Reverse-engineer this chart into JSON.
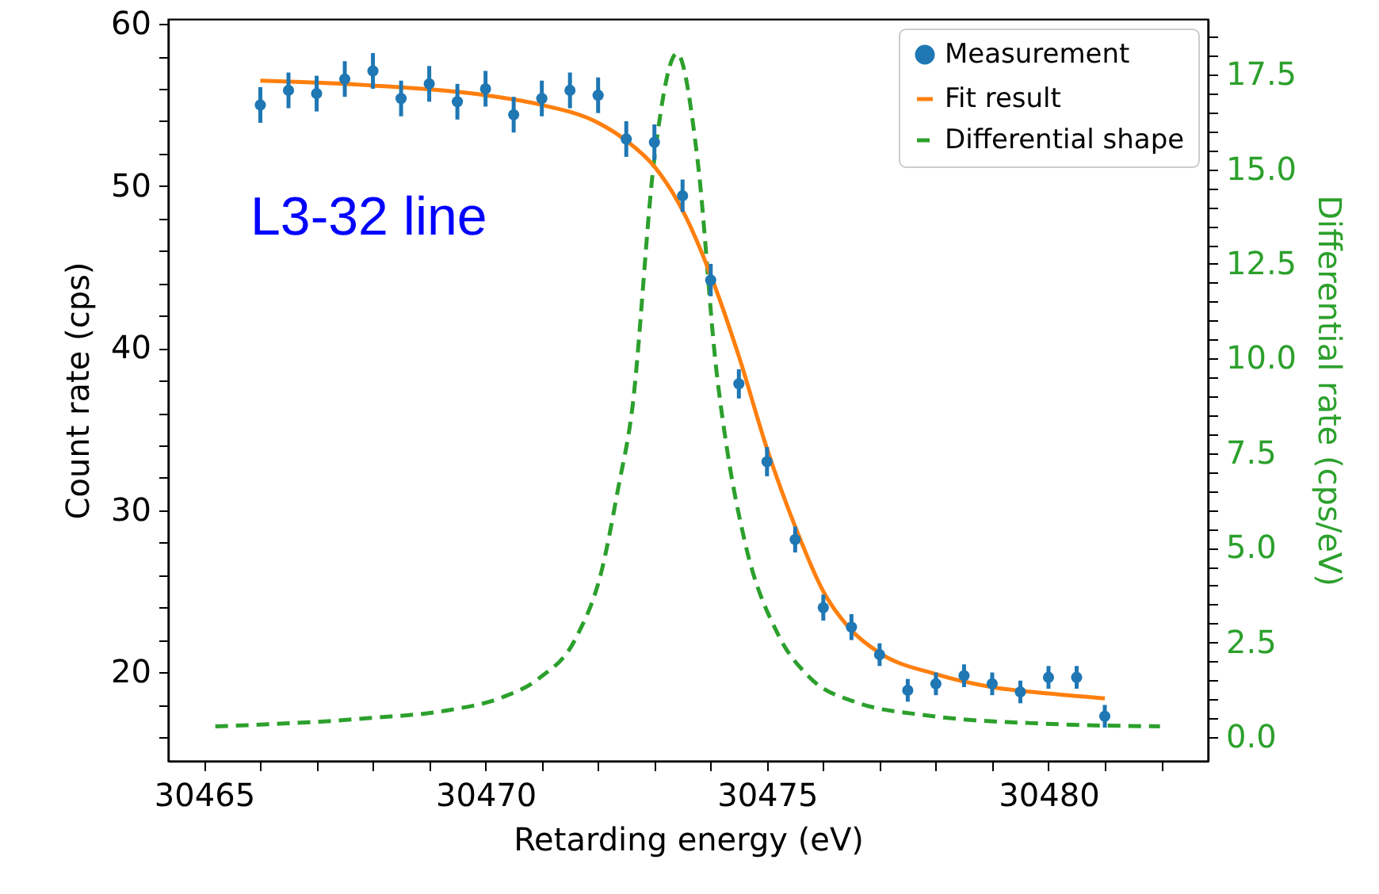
{
  "chart_data": {
    "type": "scatter",
    "xlabel": "Retarding energy (eV)",
    "ylabel": "Count rate (cps)",
    "y2label": "Differential rate (cps/eV)",
    "annotations": [
      "L3-32 line"
    ],
    "xlim": [
      30464.36,
      30482.83
    ],
    "ylim": [
      14.55,
      60.3
    ],
    "y2lim": [
      -0.63,
      18.97
    ],
    "xticks": [
      30465,
      {
        "value": 30466,
        "label": null
      },
      {
        "value": 30467,
        "label": null
      },
      {
        "value": 30468,
        "label": null
      },
      {
        "value": 30469,
        "label": null
      },
      30470,
      {
        "value": 30471,
        "label": null
      },
      {
        "value": 30472,
        "label": null
      },
      {
        "value": 30473,
        "label": null
      },
      {
        "value": 30474,
        "label": null
      },
      30475,
      {
        "value": 30476,
        "label": null
      },
      {
        "value": 30477,
        "label": null
      },
      {
        "value": 30478,
        "label": null
      },
      {
        "value": 30479,
        "label": null
      },
      30480,
      {
        "value": 30481,
        "label": null
      },
      {
        "value": 30482,
        "label": null
      }
    ],
    "yticks": [
      {
        "value": 16,
        "label": null
      },
      {
        "value": 18,
        "label": null
      },
      20,
      {
        "value": 22,
        "label": null
      },
      {
        "value": 24,
        "label": null
      },
      {
        "value": 26,
        "label": null
      },
      {
        "value": 28,
        "label": null
      },
      30,
      {
        "value": 32,
        "label": null
      },
      {
        "value": 34,
        "label": null
      },
      {
        "value": 36,
        "label": null
      },
      {
        "value": 38,
        "label": null
      },
      40,
      {
        "value": 42,
        "label": null
      },
      {
        "value": 44,
        "label": null
      },
      {
        "value": 46,
        "label": null
      },
      {
        "value": 48,
        "label": null
      },
      50,
      {
        "value": 52,
        "label": null
      },
      {
        "value": 54,
        "label": null
      },
      {
        "value": 56,
        "label": null
      },
      {
        "value": 58,
        "label": null
      },
      60
    ],
    "y2ticks": [
      {
        "value": 0,
        "label": "0.0"
      },
      {
        "value": 0.5,
        "label": null
      },
      {
        "value": 1,
        "label": null
      },
      {
        "value": 1.5,
        "label": null
      },
      {
        "value": 2,
        "label": null
      },
      2.5,
      {
        "value": 3,
        "label": null
      },
      {
        "value": 3.5,
        "label": null
      },
      {
        "value": 4,
        "label": null
      },
      {
        "value": 4.5,
        "label": null
      },
      {
        "value": 5,
        "label": "5.0"
      },
      {
        "value": 5.5,
        "label": null
      },
      {
        "value": 6,
        "label": null
      },
      {
        "value": 6.5,
        "label": null
      },
      {
        "value": 7,
        "label": null
      },
      7.5,
      {
        "value": 8,
        "label": null
      },
      {
        "value": 8.5,
        "label": null
      },
      {
        "value": 9,
        "label": null
      },
      {
        "value": 9.5,
        "label": null
      },
      {
        "value": 10,
        "label": "10.0"
      },
      {
        "value": 10.5,
        "label": null
      },
      {
        "value": 11,
        "label": null
      },
      {
        "value": 11.5,
        "label": null
      },
      {
        "value": 12,
        "label": null
      },
      12.5,
      {
        "value": 13,
        "label": null
      },
      {
        "value": 13.5,
        "label": null
      },
      {
        "value": 14,
        "label": null
      },
      {
        "value": 14.5,
        "label": null
      },
      {
        "value": 15,
        "label": "15.0"
      },
      {
        "value": 15.5,
        "label": null
      },
      {
        "value": 16,
        "label": null
      },
      {
        "value": 16.5,
        "label": null
      },
      {
        "value": 17,
        "label": null
      },
      17.5,
      {
        "value": 18,
        "label": null
      },
      {
        "value": 18.5,
        "label": null
      }
    ],
    "legend": "top right",
    "grid": false,
    "series": [
      {
        "name": "Measurement",
        "type": "scatter",
        "marker": "circle",
        "color": "#1f77b4",
        "x": [
          30466,
          30466.5,
          30467,
          30467.5,
          30468,
          30468.5,
          30469,
          30469.5,
          30470,
          30470.5,
          30471,
          30471.5,
          30472,
          30472.5,
          30473,
          30473.5,
          30474,
          30474.5,
          30475,
          30475.5,
          30476,
          30476.5,
          30477,
          30477.5,
          30478,
          30478.5,
          30479,
          30479.5,
          30480,
          30480.5,
          30481
        ],
        "values": [
          55.0,
          55.9,
          55.7,
          56.6,
          57.1,
          55.4,
          56.3,
          55.2,
          56.0,
          54.4,
          55.4,
          55.9,
          55.6,
          52.9,
          52.7,
          49.4,
          44.2,
          37.8,
          33.0,
          28.2,
          24.0,
          22.8,
          21.1,
          18.9,
          19.3,
          19.8,
          19.3,
          18.8,
          19.7,
          19.7,
          17.3
        ],
        "errors": [
          1.1,
          1.1,
          1.1,
          1.1,
          1.1,
          1.1,
          1.1,
          1.1,
          1.1,
          1.1,
          1.1,
          1.1,
          1.1,
          1.1,
          1.1,
          1.0,
          1.0,
          0.9,
          0.9,
          0.8,
          0.8,
          0.8,
          0.7,
          0.7,
          0.7,
          0.7,
          0.7,
          0.7,
          0.7,
          0.7,
          0.7
        ]
      },
      {
        "name": "Fit result",
        "type": "line",
        "line_style": "solid",
        "color": "#ff7f0e",
        "x": [
          30466,
          30468,
          30470,
          30471,
          30472,
          30472.5,
          30473,
          30473.5,
          30474,
          30474.5,
          30475,
          30475.5,
          30476,
          30476.5,
          30477,
          30478,
          30479,
          30480,
          30481
        ],
        "values": [
          56.5,
          56.2,
          55.6,
          55.0,
          53.9,
          52.8,
          51.2,
          48.5,
          44.5,
          39.5,
          33.8,
          29.0,
          25.0,
          22.6,
          21.2,
          19.9,
          19.1,
          18.7,
          18.4
        ]
      },
      {
        "name": "Differential shape",
        "type": "line",
        "line_style": "dashed",
        "axis": "y2",
        "color": "#2ca02c",
        "x": [
          30465.2,
          30467.94,
          30469.35,
          30470.3,
          30470.95,
          30471.6,
          30472.08,
          30472.36,
          30472.6,
          30473.0,
          30473.4,
          30473.77,
          30474.1,
          30474.28,
          30474.6,
          30475.2,
          30475.74,
          30476.58,
          30477.9,
          30479.96,
          30481.98
        ],
        "values": [
          0.28,
          0.5,
          0.71,
          1.05,
          1.55,
          2.6,
          4.5,
          6.6,
          8.6,
          15.3,
          18.06,
          15.2,
          9.7,
          7.7,
          5.2,
          2.7,
          1.6,
          0.92,
          0.56,
          0.35,
          0.28
        ]
      }
    ]
  }
}
